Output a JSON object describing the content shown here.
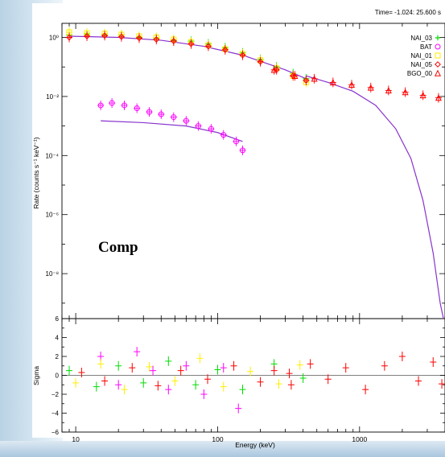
{
  "colors": {
    "NAI_03": "#00dd00",
    "BAT": "#ff00ff",
    "NAI_01": "#ffee00",
    "NAI_05": "#ff0000",
    "BGO_00": "#ff0000",
    "model": "#8833cc"
  },
  "chart_data": [
    {
      "type": "scatter",
      "title": "",
      "annotation_time": "Time= -1.024: 25.600 s",
      "annotation_model": "Comp",
      "xlabel": "Energy (keV)",
      "ylabel": "Rate (counts s⁻¹ keV⁻¹)",
      "xscale": "log",
      "yscale": "log",
      "xlim": [
        8,
        4000
      ],
      "ylim": [
        3e-10,
        3
      ],
      "x_tick_labels": [
        "10",
        "100",
        "1000"
      ],
      "y_tick_labels": [
        "10⁰",
        "10⁻²",
        "10⁻⁴",
        "10⁻⁶",
        "10⁻⁸"
      ],
      "y_tick_values": [
        1,
        0.01,
        0.0001,
        1e-06,
        1e-08
      ],
      "legend_position": "top-right",
      "series": [
        {
          "name": "NAI_03 +",
          "marker": "plus",
          "color": "#00dd00",
          "x": [
            9,
            12,
            16,
            21,
            28,
            37,
            49,
            65,
            86,
            113,
            150,
            200,
            260,
            340,
            420
          ],
          "y": [
            1.2,
            1.3,
            1.25,
            1.2,
            1.0,
            0.95,
            0.8,
            0.75,
            0.6,
            0.45,
            0.3,
            0.18,
            0.1,
            0.06,
            0.04
          ]
        },
        {
          "name": "BAT ○",
          "marker": "circle",
          "color": "#ff00ff",
          "x": [
            15,
            18,
            22,
            27,
            33,
            40,
            49,
            60,
            73,
            90,
            110,
            135,
            150
          ],
          "y": [
            0.005,
            0.006,
            0.005,
            0.004,
            0.003,
            0.0025,
            0.002,
            0.0015,
            0.001,
            0.0008,
            0.0005,
            0.0003,
            0.00015
          ]
        },
        {
          "name": "NAI_01 □",
          "marker": "square",
          "color": "#ffee00",
          "x": [
            9,
            12,
            16,
            21,
            28,
            37,
            49,
            65,
            86,
            113,
            150,
            200,
            260,
            340,
            420
          ],
          "y": [
            1.5,
            1.4,
            1.35,
            1.25,
            1.1,
            1.0,
            0.85,
            0.7,
            0.55,
            0.4,
            0.28,
            0.17,
            0.09,
            0.05,
            0.03
          ]
        },
        {
          "name": "NAI_05 ◇",
          "marker": "diamond",
          "color": "#ff0000",
          "x": [
            9,
            12,
            16,
            21,
            28,
            37,
            49,
            65,
            86,
            113,
            150,
            200,
            260,
            340,
            420
          ],
          "y": [
            1.0,
            1.1,
            1.15,
            1.05,
            0.95,
            0.85,
            0.75,
            0.6,
            0.5,
            0.38,
            0.25,
            0.15,
            0.08,
            0.05,
            0.035
          ]
        },
        {
          "name": "BGO_00 △",
          "marker": "triangle",
          "color": "#ff0000",
          "x": [
            250,
            350,
            480,
            650,
            880,
            1200,
            1600,
            2100,
            2800,
            3600
          ],
          "y": [
            0.08,
            0.05,
            0.04,
            0.03,
            0.025,
            0.02,
            0.016,
            0.014,
            0.011,
            0.009
          ]
        }
      ],
      "model_curves": [
        {
          "name": "detectors",
          "x": [
            9,
            20,
            40,
            80,
            150,
            300,
            420
          ],
          "y": [
            1.1,
            1.0,
            0.8,
            0.5,
            0.25,
            0.08,
            0.04
          ]
        },
        {
          "name": "bat",
          "x": [
            15,
            30,
            60,
            100,
            150
          ],
          "y": [
            0.0015,
            0.0013,
            0.001,
            0.0006,
            0.0003
          ]
        },
        {
          "name": "bgo",
          "x": [
            420,
            600,
            900,
            1300,
            1800,
            2300,
            2800,
            3300,
            3700,
            3900
          ],
          "y": [
            0.05,
            0.03,
            0.015,
            0.005,
            0.0008,
            8e-05,
            3e-06,
            5e-08,
            1e-09,
            3e-10
          ]
        }
      ]
    },
    {
      "type": "scatter",
      "title": "",
      "xlabel": "Energy (keV)",
      "ylabel": "Sigma",
      "xscale": "log",
      "xlim": [
        8,
        4000
      ],
      "ylim": [
        -6,
        6
      ],
      "y_tick_labels": [
        "6",
        "4",
        "2",
        "0",
        "−2",
        "−4",
        "−6"
      ],
      "y_tick_values": [
        6,
        4,
        2,
        0,
        -2,
        -4,
        -6
      ],
      "x_tick_labels": [
        "10",
        "100",
        "1000"
      ],
      "series": [
        {
          "name": "NAI_03 +",
          "x": [
            9,
            14,
            20,
            30,
            45,
            70,
            100,
            150,
            250,
            400
          ],
          "y": [
            0.5,
            -1.2,
            1.0,
            -0.8,
            1.5,
            -1.0,
            0.6,
            -1.5,
            1.2,
            -0.3
          ]
        },
        {
          "name": "BAT ○",
          "x": [
            15,
            20,
            27,
            35,
            45,
            60,
            80,
            110,
            140
          ],
          "y": [
            2.0,
            -1.0,
            2.5,
            0.5,
            -1.5,
            1.0,
            -2.0,
            0.8,
            -3.5
          ]
        },
        {
          "name": "NAI_01 □",
          "x": [
            10,
            15,
            22,
            33,
            50,
            75,
            110,
            170,
            270,
            380
          ],
          "y": [
            -0.8,
            1.2,
            -1.5,
            0.9,
            -0.6,
            1.8,
            -1.2,
            0.4,
            -0.9,
            1.1
          ]
        },
        {
          "name": "NAI_05 ◇",
          "x": [
            11,
            16,
            25,
            38,
            55,
            85,
            130,
            200,
            320
          ],
          "y": [
            0.3,
            -0.6,
            0.8,
            -1.1,
            0.5,
            -0.4,
            1.0,
            -0.7,
            0.2
          ]
        },
        {
          "name": "BGO_00 △",
          "x": [
            250,
            330,
            450,
            600,
            800,
            1100,
            1500,
            2000,
            2600,
            3300,
            3800
          ],
          "y": [
            0.5,
            -1.0,
            1.2,
            -0.4,
            0.8,
            -1.5,
            1.0,
            2.0,
            -0.6,
            1.4,
            -0.9
          ]
        }
      ]
    }
  ]
}
